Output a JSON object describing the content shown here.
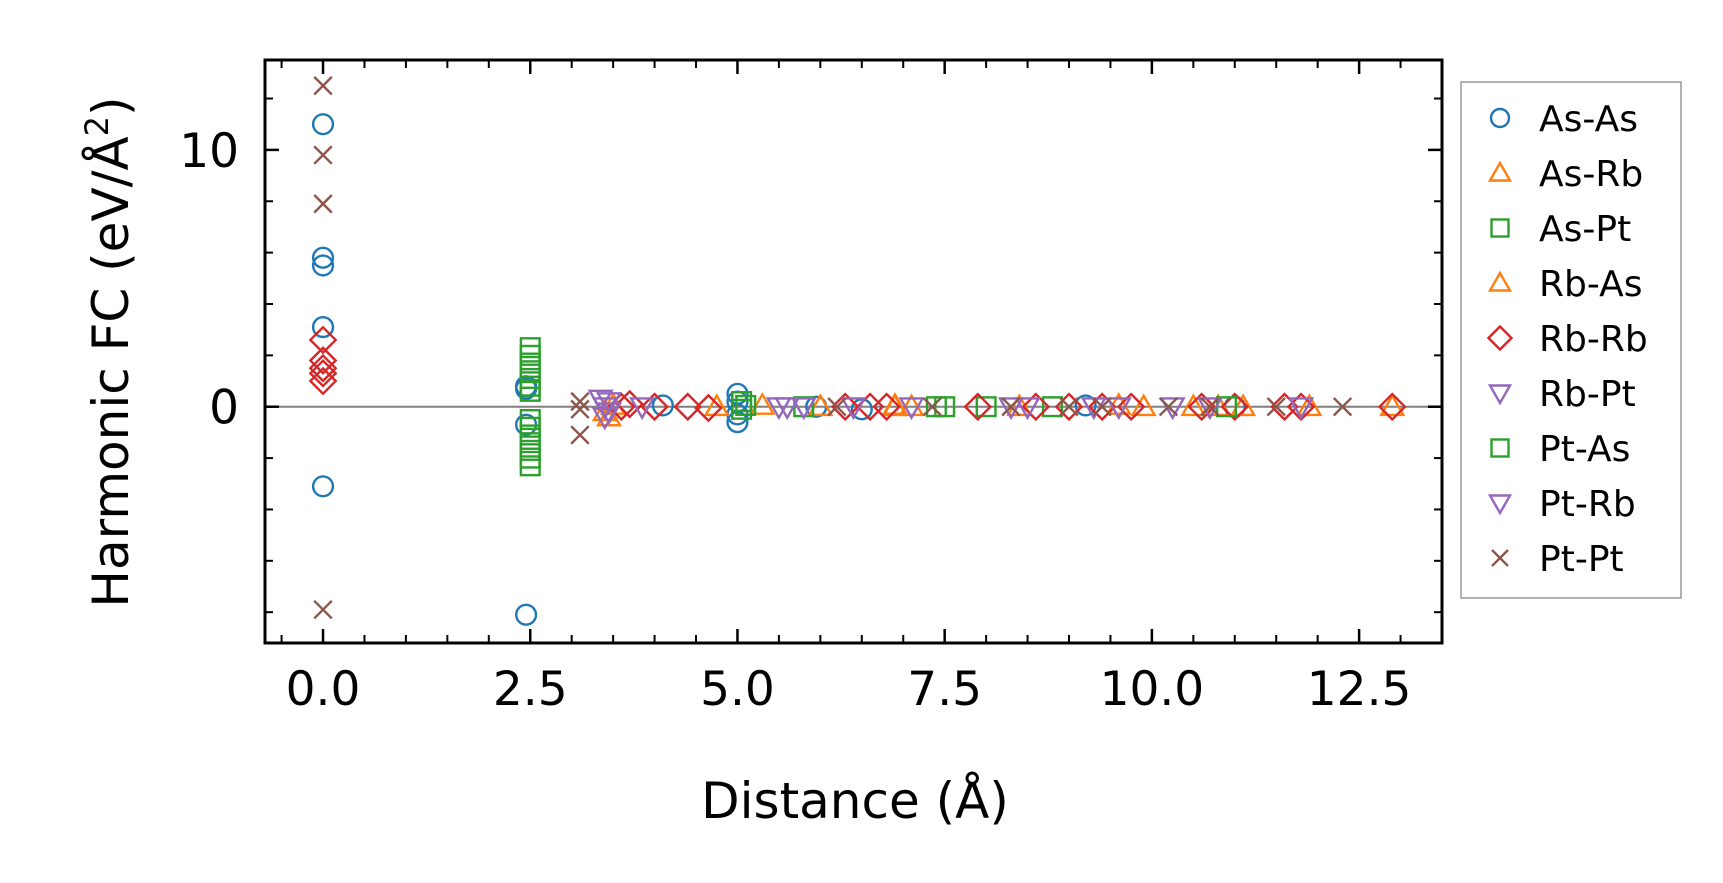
{
  "chart_data": {
    "type": "scatter",
    "title": "",
    "xlabel": "Distance (Å)",
    "ylabel": "Harmonic FC (eV/Å²)",
    "ylabel_base": "Harmonic FC (eV/Å",
    "ylabel_sup": "2",
    "ylabel_close": ")",
    "xlim": [
      -0.7,
      13.5
    ],
    "ylim": [
      -9.2,
      13.5
    ],
    "xticks": [
      0.0,
      2.5,
      5.0,
      7.5,
      10.0,
      12.5
    ],
    "xtick_labels": [
      "0.0",
      "2.5",
      "5.0",
      "7.5",
      "10.0",
      "12.5"
    ],
    "yticks": [
      0,
      10
    ],
    "ytick_labels": [
      "0",
      "10"
    ],
    "zero_line": true,
    "legend_position": "right",
    "series": [
      {
        "name": "As-As",
        "marker": "circle",
        "color": "#1f77b4",
        "points": [
          [
            0,
            11
          ],
          [
            0,
            5.8
          ],
          [
            0,
            5.5
          ],
          [
            0,
            3.1
          ],
          [
            0,
            -3.1
          ],
          [
            2.45,
            0.8
          ],
          [
            2.45,
            0.7
          ],
          [
            2.45,
            -0.7
          ],
          [
            2.45,
            -8.1
          ],
          [
            4.1,
            0.05
          ],
          [
            5.0,
            0.5
          ],
          [
            5.0,
            0.2
          ],
          [
            5.0,
            -0.3
          ],
          [
            5.0,
            -0.6
          ],
          [
            5.95,
            0
          ],
          [
            6.5,
            -0.1
          ],
          [
            9.2,
            0.05
          ],
          [
            11.0,
            0
          ]
        ]
      },
      {
        "name": "As-Rb",
        "marker": "triangle-up",
        "color": "#ff7f0e",
        "points": [
          [
            3.4,
            -0.2
          ],
          [
            3.45,
            -0.4
          ],
          [
            5.3,
            0.05
          ],
          [
            6.0,
            0
          ],
          [
            6.9,
            0
          ],
          [
            7.1,
            0
          ],
          [
            8.4,
            0
          ],
          [
            9.6,
            0.05
          ],
          [
            10.5,
            0
          ],
          [
            11.1,
            0
          ],
          [
            11.9,
            0
          ]
        ]
      },
      {
        "name": "As-Pt",
        "marker": "square",
        "color": "#2ca02c",
        "points": [
          [
            2.5,
            2.3
          ],
          [
            2.5,
            2.0
          ],
          [
            2.5,
            1.7
          ],
          [
            2.5,
            1.4
          ],
          [
            2.5,
            1.1
          ],
          [
            2.5,
            0.8
          ],
          [
            2.5,
            0.6
          ],
          [
            2.5,
            -0.5
          ],
          [
            2.5,
            -0.8
          ],
          [
            2.5,
            -1.1
          ],
          [
            2.5,
            -1.4
          ],
          [
            2.5,
            -1.7
          ],
          [
            2.5,
            -2.0
          ],
          [
            2.5,
            -2.3
          ],
          [
            5.05,
            0.2
          ],
          [
            5.05,
            -0.1
          ],
          [
            5.8,
            0
          ],
          [
            7.5,
            0
          ],
          [
            8.0,
            0
          ],
          [
            8.8,
            0
          ]
        ]
      },
      {
        "name": "Rb-As",
        "marker": "triangle-up",
        "color": "#ff7f0e",
        "points": [
          [
            3.5,
            0.05
          ],
          [
            4.75,
            0
          ],
          [
            6.9,
            0.05
          ],
          [
            9.9,
            0
          ],
          [
            10.8,
            0
          ],
          [
            12.9,
            0
          ]
        ]
      },
      {
        "name": "Rb-Rb",
        "marker": "diamond",
        "color": "#d62728",
        "points": [
          [
            0,
            2.6
          ],
          [
            0,
            1.8
          ],
          [
            0,
            1.5
          ],
          [
            0,
            1.3
          ],
          [
            0,
            1.0
          ],
          [
            3.6,
            0
          ],
          [
            3.7,
            0.1
          ],
          [
            4.0,
            0
          ],
          [
            4.4,
            0
          ],
          [
            4.65,
            -0.05
          ],
          [
            6.3,
            0
          ],
          [
            6.6,
            0
          ],
          [
            6.8,
            0
          ],
          [
            7.9,
            0
          ],
          [
            8.6,
            0
          ],
          [
            9.0,
            0
          ],
          [
            9.4,
            0
          ],
          [
            9.75,
            0
          ],
          [
            10.6,
            0
          ],
          [
            11.0,
            0
          ],
          [
            11.6,
            0
          ],
          [
            11.8,
            0
          ],
          [
            12.9,
            0
          ]
        ]
      },
      {
        "name": "Rb-Pt",
        "marker": "triangle-down",
        "color": "#9467bd",
        "points": [
          [
            3.35,
            0.3
          ],
          [
            3.4,
            0
          ],
          [
            3.4,
            -0.4
          ],
          [
            3.85,
            0
          ],
          [
            5.6,
            0
          ],
          [
            5.8,
            0
          ],
          [
            6.4,
            0
          ],
          [
            7.1,
            0
          ],
          [
            8.3,
            0
          ],
          [
            9.6,
            0
          ],
          [
            10.25,
            0
          ],
          [
            11.8,
            0
          ]
        ]
      },
      {
        "name": "Pt-As",
        "marker": "square",
        "color": "#2ca02c",
        "points": [
          [
            5.1,
            0.05
          ],
          [
            7.4,
            0
          ],
          [
            10.9,
            0
          ]
        ]
      },
      {
        "name": "Pt-Rb",
        "marker": "triangle-down",
        "color": "#9467bd",
        "points": [
          [
            3.45,
            0.2
          ],
          [
            3.45,
            -0.2
          ],
          [
            5.5,
            0
          ],
          [
            8.5,
            0
          ],
          [
            9.3,
            0
          ],
          [
            10.7,
            0
          ]
        ]
      },
      {
        "name": "Pt-Pt",
        "marker": "x",
        "color": "#8c564b",
        "points": [
          [
            0,
            12.5
          ],
          [
            0,
            9.8
          ],
          [
            0,
            7.9
          ],
          [
            0,
            -7.9
          ],
          [
            3.1,
            0.2
          ],
          [
            3.1,
            -0.1
          ],
          [
            3.1,
            -1.1
          ],
          [
            6.2,
            0
          ],
          [
            7.35,
            0
          ],
          [
            8.3,
            0
          ],
          [
            9.0,
            0
          ],
          [
            9.4,
            0
          ],
          [
            10.2,
            0
          ],
          [
            10.7,
            0
          ],
          [
            11.5,
            0
          ],
          [
            12.3,
            0
          ]
        ]
      }
    ]
  }
}
